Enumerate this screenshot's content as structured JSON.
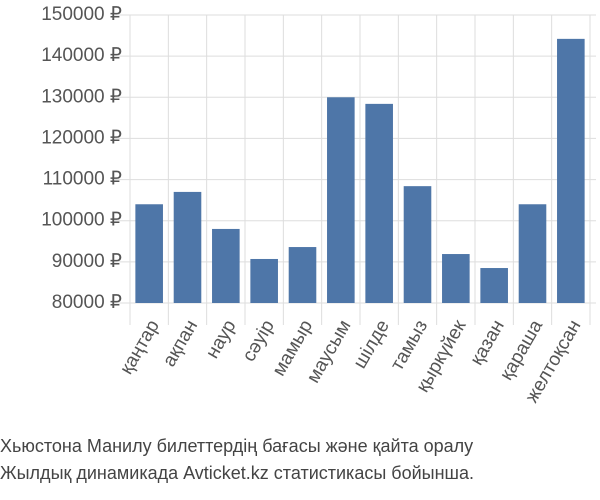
{
  "chart_data": {
    "type": "bar",
    "categories": [
      "қаңтар",
      "ақпан",
      "наур",
      "сәуір",
      "мамыр",
      "маусым",
      "шілде",
      "тамыз",
      "қыркүйек",
      "қазан",
      "қараша",
      "желтоқсан"
    ],
    "values": [
      104000,
      107000,
      98000,
      90700,
      93600,
      130000,
      128400,
      108400,
      91900,
      88500,
      104000,
      144200
    ],
    "color": "#4e76a8",
    "ylim": [
      80000,
      150000
    ],
    "yticks": [
      {
        "value": 80000,
        "label": "80000 ₽"
      },
      {
        "value": 90000,
        "label": "90000 ₽"
      },
      {
        "value": 100000,
        "label": "100000 ₽"
      },
      {
        "value": 110000,
        "label": "110000 ₽"
      },
      {
        "value": 120000,
        "label": "120000 ₽"
      },
      {
        "value": 130000,
        "label": "130000 ₽"
      },
      {
        "value": 140000,
        "label": "140000 ₽"
      },
      {
        "value": 150000,
        "label": "150000 ₽"
      }
    ],
    "grid": true,
    "caption": [
      "Хьюстона Манилу билеттердің бағасы және қайта оралу",
      "Жылдық динамикада Avticket.kz статистикасы бойынша."
    ]
  }
}
